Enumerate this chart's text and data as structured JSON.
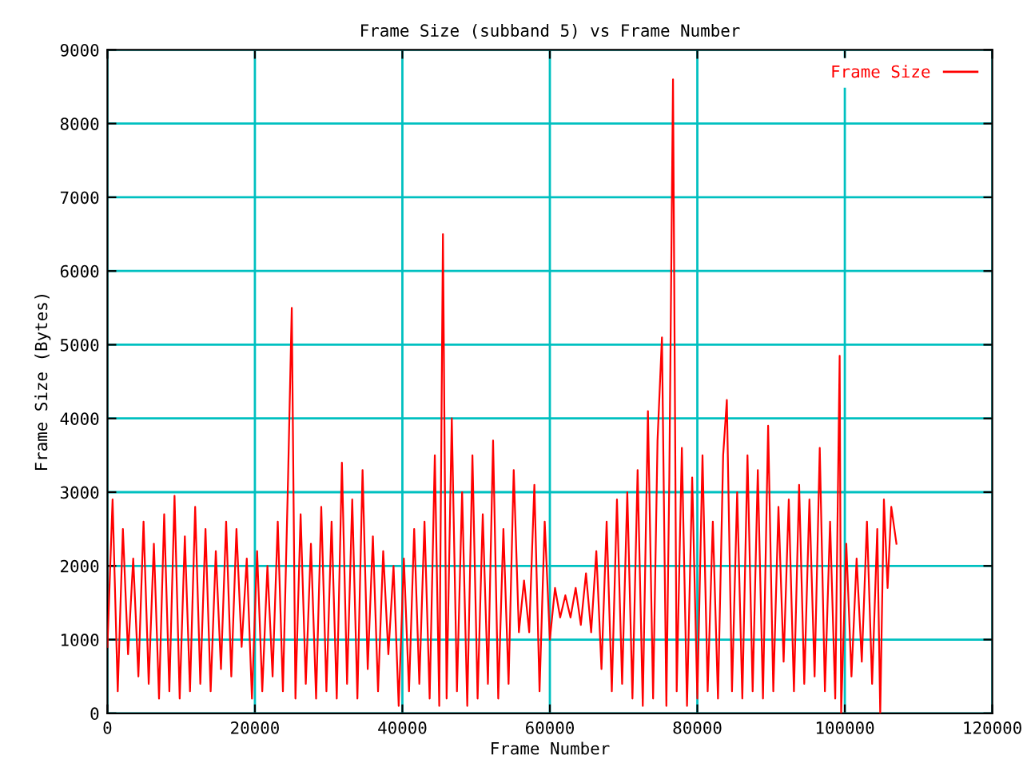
{
  "chart_data": {
    "type": "line",
    "title": "Frame Size (subband 5) vs Frame Number",
    "xlabel": "Frame Number",
    "ylabel": "Frame Size (Bytes)",
    "xlim": [
      0,
      120000
    ],
    "ylim": [
      0,
      9000
    ],
    "xticks": [
      0,
      20000,
      40000,
      60000,
      80000,
      100000,
      120000
    ],
    "yticks": [
      0,
      1000,
      2000,
      3000,
      4000,
      5000,
      6000,
      7000,
      8000,
      9000
    ],
    "grid": true,
    "legend": "top right",
    "marker": "none",
    "line_style": "solid",
    "series": [
      {
        "name": "Frame Size",
        "color": "#ff0000",
        "x": [
          0,
          700,
          1400,
          2100,
          2800,
          3500,
          4200,
          4900,
          5600,
          6300,
          7000,
          7700,
          8400,
          9100,
          9800,
          10500,
          11200,
          11900,
          12600,
          13300,
          14000,
          14700,
          15400,
          16100,
          16800,
          17500,
          18200,
          18900,
          19600,
          20300,
          21000,
          21700,
          22400,
          23100,
          23800,
          24500,
          25000,
          25500,
          26200,
          26900,
          27600,
          28300,
          29000,
          29700,
          30400,
          31100,
          31800,
          32500,
          33200,
          33900,
          34600,
          35300,
          36000,
          36700,
          37400,
          38100,
          38800,
          39500,
          40200,
          40900,
          41600,
          42300,
          43000,
          43700,
          44400,
          45000,
          45500,
          46000,
          46700,
          47400,
          48100,
          48800,
          49500,
          50200,
          50900,
          51600,
          52300,
          53000,
          53700,
          54400,
          55100,
          55800,
          56500,
          57200,
          57900,
          58600,
          59300,
          60000,
          60700,
          61400,
          62100,
          62800,
          63500,
          64200,
          64900,
          65600,
          66300,
          67000,
          67700,
          68400,
          69100,
          69800,
          70500,
          71200,
          71900,
          72600,
          73300,
          74000,
          74600,
          75200,
          75800,
          76200,
          76700,
          77200,
          77900,
          78600,
          79300,
          80000,
          80700,
          81400,
          82100,
          82800,
          83500,
          84000,
          84700,
          85400,
          86100,
          86800,
          87500,
          88200,
          88900,
          89600,
          90300,
          91000,
          91700,
          92400,
          93100,
          93800,
          94500,
          95200,
          95900,
          96600,
          97300,
          98000,
          98700,
          99300,
          99500,
          100200,
          100900,
          101600,
          102300,
          103000,
          103700,
          104400,
          104800,
          105300,
          105800,
          106300,
          107000
        ],
        "values": [
          900,
          2900,
          300,
          2500,
          800,
          2100,
          500,
          2600,
          400,
          2300,
          200,
          2700,
          300,
          2950,
          200,
          2400,
          300,
          2800,
          400,
          2500,
          300,
          2200,
          600,
          2600,
          500,
          2500,
          900,
          2100,
          200,
          2200,
          300,
          2000,
          500,
          2600,
          300,
          3200,
          5500,
          200,
          2700,
          400,
          2300,
          200,
          2800,
          300,
          2600,
          200,
          3400,
          400,
          2900,
          200,
          3300,
          600,
          2400,
          300,
          2200,
          800,
          2000,
          100,
          2100,
          300,
          2500,
          400,
          2600,
          200,
          3500,
          100,
          6500,
          200,
          4000,
          300,
          3000,
          100,
          3500,
          200,
          2700,
          400,
          3700,
          200,
          2500,
          400,
          3300,
          1100,
          1800,
          1100,
          3100,
          300,
          2600,
          1000,
          1700,
          1300,
          1600,
          1300,
          1700,
          1200,
          1900,
          1100,
          2200,
          600,
          2600,
          300,
          2900,
          400,
          3000,
          200,
          3300,
          100,
          4100,
          200,
          3700,
          5100,
          100,
          3200,
          8600,
          300,
          3600,
          100,
          3200,
          200,
          3500,
          300,
          2600,
          200,
          3500,
          4250,
          300,
          3000,
          200,
          3500,
          300,
          3300,
          200,
          3900,
          300,
          2800,
          700,
          2900,
          300,
          3100,
          400,
          2900,
          500,
          3600,
          300,
          2600,
          200,
          4850,
          0,
          2300,
          500,
          2100,
          700,
          2600,
          400,
          2500,
          0,
          2900,
          1700,
          2800,
          2300
        ]
      }
    ]
  }
}
